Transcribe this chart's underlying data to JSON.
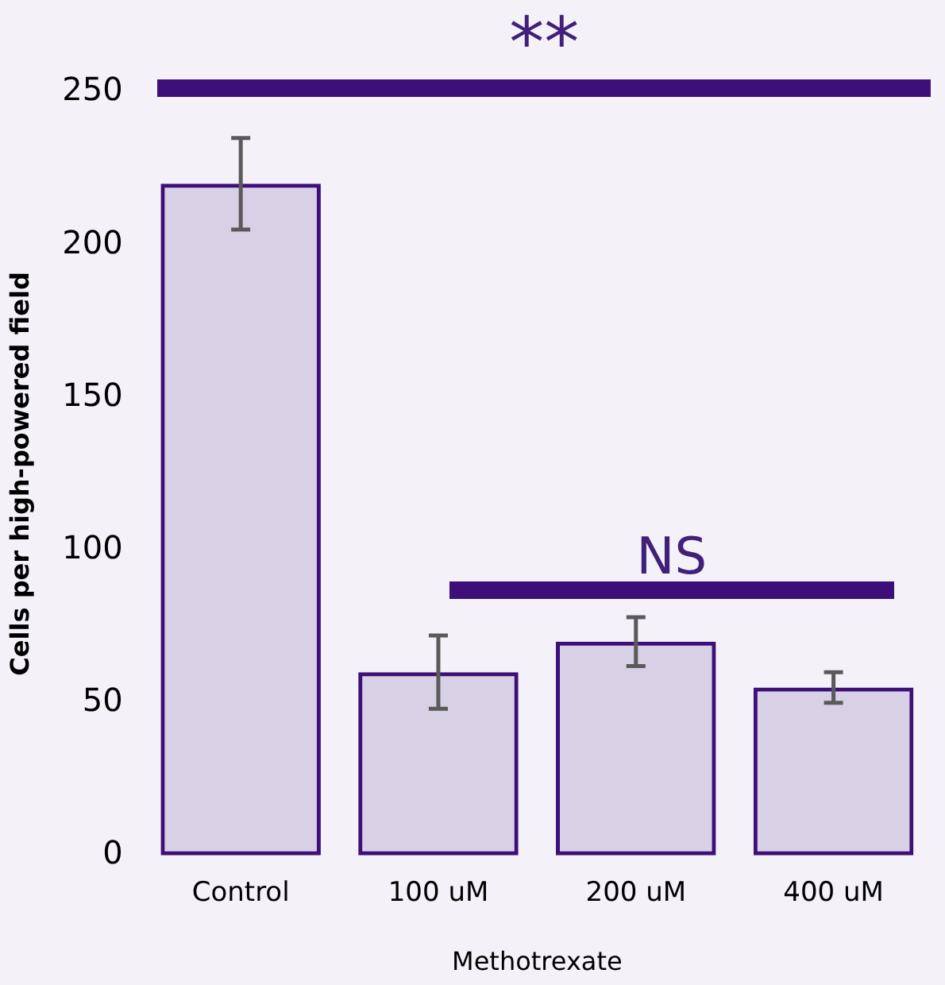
{
  "chart_data": {
    "type": "bar",
    "xlabel": "Methotrexate",
    "ylabel": "Cells per high-powered field",
    "categories": [
      "Control",
      "100 uM",
      "200 uM",
      "400 uM"
    ],
    "values": [
      220,
      60,
      70,
      55
    ],
    "errors": [
      [
        205,
        235
      ],
      [
        48,
        72
      ],
      [
        62,
        78
      ],
      [
        50,
        60
      ]
    ],
    "color": "#3d0f78",
    "ylim": [
      0,
      250
    ],
    "yticks": [
      0,
      50,
      100,
      150,
      200,
      250
    ],
    "grid": false,
    "legend": false,
    "annotations": [
      "**",
      "NS"
    ]
  }
}
